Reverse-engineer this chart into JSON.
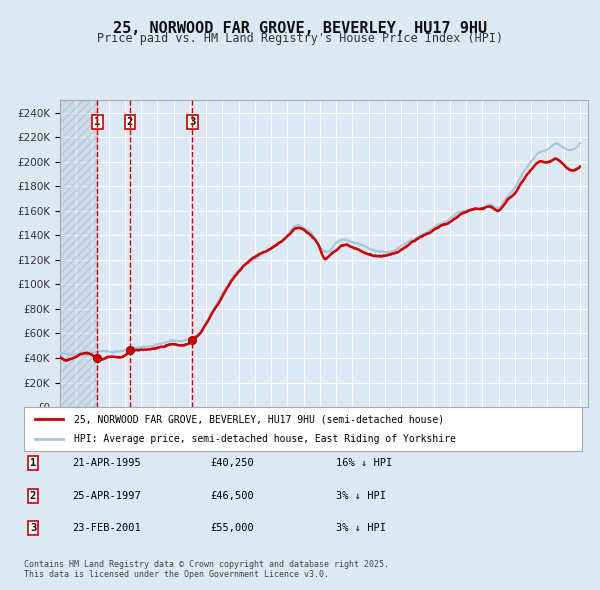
{
  "title": "25, NORWOOD FAR GROVE, BEVERLEY, HU17 9HU",
  "subtitle": "Price paid vs. HM Land Registry's House Price Index (HPI)",
  "ylabel": "",
  "xlim_start": 1993.0,
  "xlim_end": 2025.5,
  "ylim_min": 0,
  "ylim_max": 250000,
  "ytick_step": 20000,
  "background_color": "#dce9f5",
  "plot_bg_color": "#dce9f5",
  "grid_color": "#ffffff",
  "hpi_color": "#a8c4e0",
  "price_color": "#cc0000",
  "sale_marker_color": "#cc0000",
  "dashed_line_color": "#cc0000",
  "legend_box_color": "#ffffff",
  "legend_border_color": "#aaaaaa",
  "sale_events": [
    {
      "num": 1,
      "date": "21-APR-1995",
      "price": 40250,
      "year": 1995.3,
      "note": "16% ↓ HPI"
    },
    {
      "num": 2,
      "date": "25-APR-1997",
      "price": 46500,
      "year": 1997.3,
      "note": "3% ↓ HPI"
    },
    {
      "num": 3,
      "date": "23-FEB-2001",
      "price": 55000,
      "year": 2001.15,
      "note": "3% ↓ HPI"
    }
  ],
  "legend_line1": "25, NORWOOD FAR GROVE, BEVERLEY, HU17 9HU (semi-detached house)",
  "legend_line2": "HPI: Average price, semi-detached house, East Riding of Yorkshire",
  "footer": "Contains HM Land Registry data © Crown copyright and database right 2025.\nThis data is licensed under the Open Government Licence v3.0.",
  "hatch_color": "#bbbbbb"
}
